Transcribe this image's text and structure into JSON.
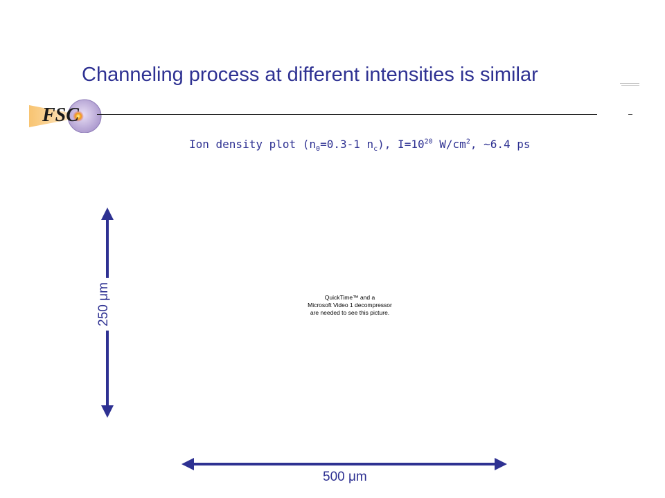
{
  "slide": {
    "title": "Channeling process at different intensities is similar",
    "logo_text": "FSC",
    "subtitle": {
      "p1": "Ion density plot (n",
      "sub1": "0",
      "p2": "=0.3-1 n",
      "sub2": "c",
      "p3": "), I=10",
      "sup1": "20",
      "p4": " W/cm",
      "sup2": "2",
      "p5": ", ~6.4 ps"
    },
    "vertical_scale_label": "250 μm",
    "horizontal_scale_label": "500 μm",
    "media_placeholder": {
      "line1": "QuickTime™ and a",
      "line2": "Microsoft Video 1 decompressor",
      "line3": "are needed to see this picture."
    }
  },
  "colors": {
    "title": "#2e3192",
    "arrow": "#2e3192",
    "logo_beam": "#f5b041",
    "logo_disc": "#c9b8e0"
  },
  "icons": {
    "logo": "fsc-laser-beam-logo",
    "vertical_arrow": "double-headed-vertical-arrow",
    "horizontal_arrow": "double-headed-horizontal-arrow"
  }
}
